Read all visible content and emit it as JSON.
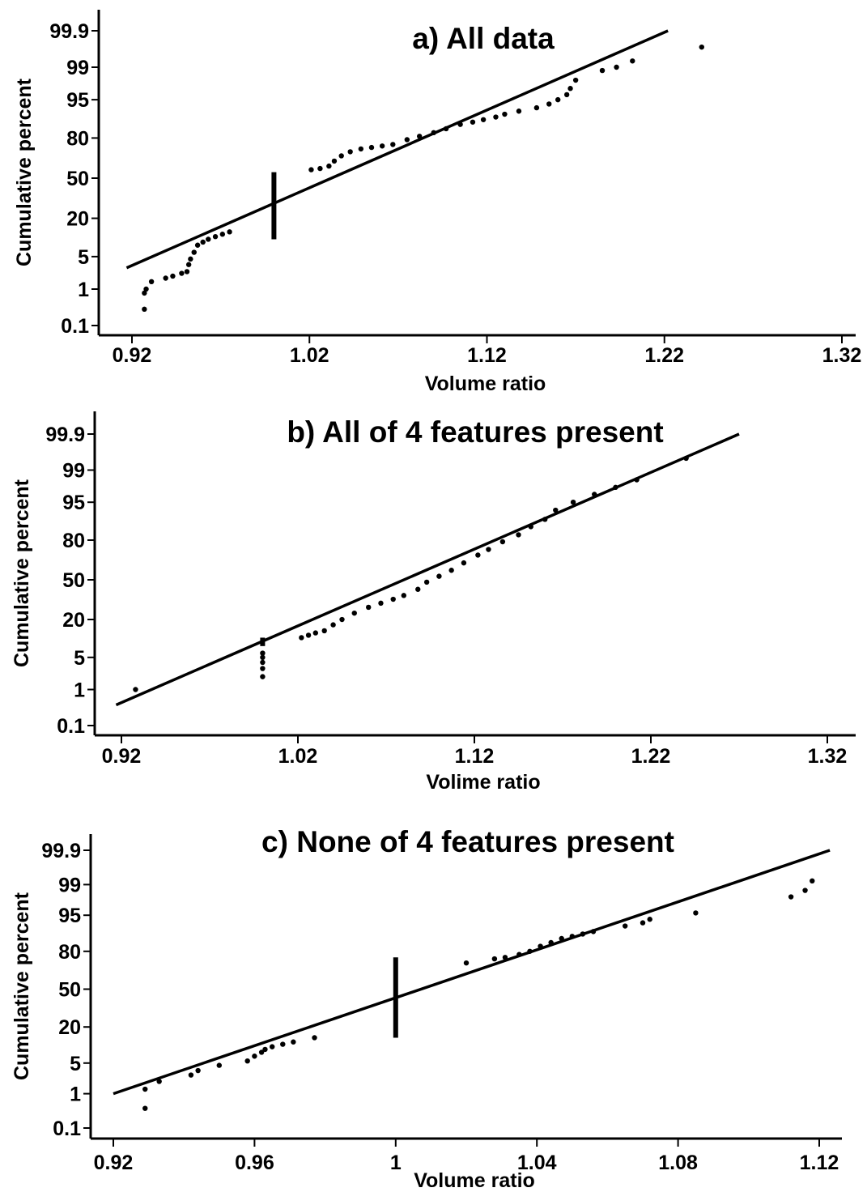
{
  "chart_data": [
    {
      "type": "scatter",
      "title": "a) All data",
      "xlabel": "Volume ratio",
      "ylabel": "Cumulative percent",
      "xlim": [
        0.92,
        1.32
      ],
      "x_ticks": [
        "0.92",
        "1.02",
        "1.12",
        "1.22",
        "1.32"
      ],
      "y_ticks": [
        "0.1",
        "1",
        "5",
        "20",
        "50",
        "80",
        "95",
        "99",
        "99.9"
      ],
      "y_scale": "normal probability",
      "fit_line": [
        [
          0.917,
          3
        ],
        [
          1.222,
          99.9
        ]
      ],
      "vertical_mark": {
        "x": 1.0,
        "y_range": [
          10,
          55
        ]
      },
      "series": [
        {
          "points": [
            [
              0.927,
              0.3
            ],
            [
              0.927,
              0.8
            ],
            [
              0.928,
              1.0
            ],
            [
              0.931,
              1.5
            ],
            [
              0.939,
              1.8
            ],
            [
              0.943,
              2.0
            ],
            [
              0.948,
              2.3
            ],
            [
              0.951,
              2.5
            ],
            [
              0.952,
              3.5
            ],
            [
              0.953,
              4.5
            ],
            [
              0.955,
              6
            ],
            [
              0.957,
              8
            ],
            [
              0.96,
              9
            ],
            [
              0.963,
              10
            ],
            [
              0.967,
              11
            ],
            [
              0.971,
              12
            ],
            [
              0.975,
              13
            ],
            [
              1.021,
              57
            ],
            [
              1.026,
              58
            ],
            [
              1.031,
              60
            ],
            [
              1.034,
              64
            ],
            [
              1.038,
              68
            ],
            [
              1.043,
              71
            ],
            [
              1.049,
              73
            ],
            [
              1.055,
              74
            ],
            [
              1.061,
              75
            ],
            [
              1.067,
              76
            ],
            [
              1.075,
              79
            ],
            [
              1.082,
              81
            ],
            [
              1.09,
              83
            ],
            [
              1.097,
              85
            ],
            [
              1.105,
              87
            ],
            [
              1.112,
              88
            ],
            [
              1.118,
              89
            ],
            [
              1.125,
              90
            ],
            [
              1.13,
              91
            ],
            [
              1.138,
              92
            ],
            [
              1.148,
              93
            ],
            [
              1.155,
              94
            ],
            [
              1.16,
              95
            ],
            [
              1.165,
              96
            ],
            [
              1.167,
              97
            ],
            [
              1.17,
              98
            ],
            [
              1.185,
              98.8
            ],
            [
              1.193,
              99
            ],
            [
              1.202,
              99.3
            ],
            [
              1.241,
              99.7
            ]
          ]
        }
      ]
    },
    {
      "type": "scatter",
      "title": "b) All of 4 features present",
      "xlabel": "Volime ratio",
      "ylabel": "Cumulative percent",
      "xlim": [
        0.92,
        1.32
      ],
      "x_ticks": [
        "0.92",
        "1.02",
        "1.12",
        "1.22",
        "1.32"
      ],
      "y_ticks": [
        "0.1",
        "1",
        "5",
        "20",
        "50",
        "80",
        "95",
        "99",
        "99.9"
      ],
      "y_scale": "normal probability",
      "fit_line": [
        [
          0.917,
          0.4
        ],
        [
          1.27,
          99.9
        ]
      ],
      "vertical_mark": {
        "x": 1.0,
        "y_range": [
          8,
          11
        ]
      },
      "series": [
        {
          "points": [
            [
              0.928,
              1.0
            ],
            [
              1.0,
              2.0
            ],
            [
              1.0,
              3.0
            ],
            [
              1.0,
              4.0
            ],
            [
              1.0,
              5.0
            ],
            [
              1.0,
              6.0
            ],
            [
              1.022,
              11
            ],
            [
              1.026,
              12
            ],
            [
              1.03,
              13
            ],
            [
              1.035,
              14
            ],
            [
              1.04,
              17
            ],
            [
              1.045,
              20
            ],
            [
              1.052,
              24
            ],
            [
              1.06,
              28
            ],
            [
              1.067,
              31
            ],
            [
              1.074,
              34
            ],
            [
              1.08,
              37
            ],
            [
              1.088,
              42
            ],
            [
              1.093,
              48
            ],
            [
              1.1,
              53
            ],
            [
              1.107,
              58
            ],
            [
              1.114,
              64
            ],
            [
              1.122,
              70
            ],
            [
              1.128,
              74
            ],
            [
              1.136,
              79
            ],
            [
              1.145,
              83
            ],
            [
              1.152,
              87
            ],
            [
              1.16,
              90
            ],
            [
              1.166,
              93
            ],
            [
              1.176,
              95
            ],
            [
              1.188,
              96.5
            ],
            [
              1.2,
              97.5
            ],
            [
              1.212,
              98.3
            ],
            [
              1.24,
              99.5
            ]
          ]
        }
      ]
    },
    {
      "type": "scatter",
      "title": "c) None of 4 features present",
      "xlabel": "Volume ratio",
      "ylabel": "Cumulative percent",
      "xlim": [
        0.92,
        1.12
      ],
      "x_ticks": [
        "0.92",
        "0.96",
        "1",
        "1.04",
        "1.08",
        "1.12"
      ],
      "y_ticks": [
        "0.1",
        "1",
        "5",
        "20",
        "50",
        "80",
        "95",
        "99",
        "99.9"
      ],
      "y_scale": "normal probability",
      "fit_line": [
        [
          0.92,
          1.0
        ],
        [
          1.123,
          99.9
        ]
      ],
      "vertical_mark": {
        "x": 1.0,
        "y_range": [
          14,
          76
        ]
      },
      "series": [
        {
          "points": [
            [
              0.929,
              0.4
            ],
            [
              0.929,
              1.3
            ],
            [
              0.933,
              2.0
            ],
            [
              0.942,
              2.8
            ],
            [
              0.944,
              3.5
            ],
            [
              0.95,
              4.5
            ],
            [
              0.958,
              5.5
            ],
            [
              0.96,
              6.8
            ],
            [
              0.962,
              8
            ],
            [
              0.963,
              9
            ],
            [
              0.965,
              10
            ],
            [
              0.968,
              11
            ],
            [
              0.971,
              12
            ],
            [
              0.977,
              14
            ],
            [
              1.02,
              72
            ],
            [
              1.028,
              75
            ],
            [
              1.031,
              76
            ],
            [
              1.035,
              78
            ],
            [
              1.038,
              80
            ],
            [
              1.041,
              83
            ],
            [
              1.044,
              85
            ],
            [
              1.047,
              87
            ],
            [
              1.05,
              88
            ],
            [
              1.053,
              89
            ],
            [
              1.056,
              90
            ],
            [
              1.065,
              92
            ],
            [
              1.07,
              93
            ],
            [
              1.072,
              94
            ],
            [
              1.085,
              95.5
            ],
            [
              1.112,
              98
            ],
            [
              1.116,
              98.6
            ],
            [
              1.118,
              99.2
            ]
          ]
        }
      ]
    }
  ]
}
